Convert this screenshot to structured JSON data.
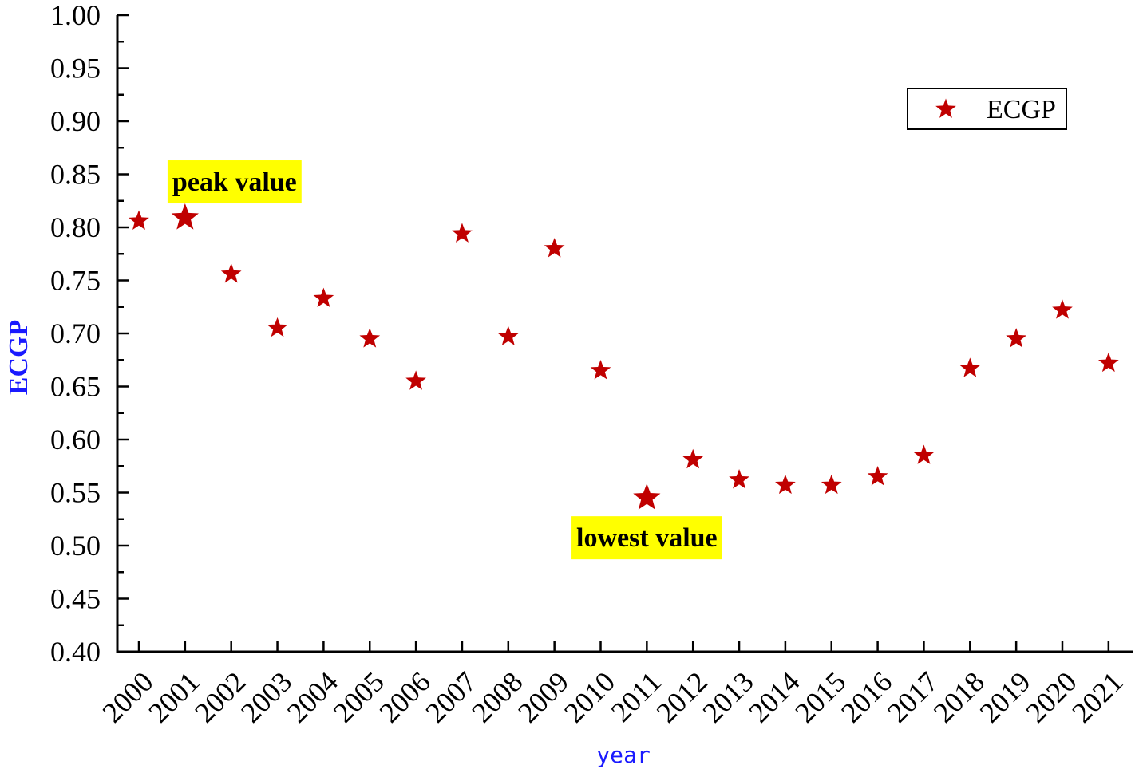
{
  "chart_data": {
    "type": "scatter",
    "title": "",
    "xlabel": "year",
    "ylabel": "ECGP",
    "ylim": [
      0.4,
      1.0
    ],
    "yticks": [
      "0.40",
      "0.45",
      "0.50",
      "0.55",
      "0.60",
      "0.65",
      "0.70",
      "0.75",
      "0.80",
      "0.85",
      "0.90",
      "0.95",
      "1.00"
    ],
    "categories": [
      "2000",
      "2001",
      "2002",
      "2003",
      "2004",
      "2005",
      "2006",
      "2007",
      "2008",
      "2009",
      "2010",
      "2011",
      "2012",
      "2013",
      "2014",
      "2015",
      "2016",
      "2017",
      "2018",
      "2019",
      "2020",
      "2021"
    ],
    "series": [
      {
        "name": "ECGP",
        "marker": "star",
        "color": "#c00000",
        "values": [
          0.806,
          0.809,
          0.756,
          0.705,
          0.733,
          0.695,
          0.655,
          0.794,
          0.697,
          0.78,
          0.665,
          0.545,
          0.581,
          0.562,
          0.557,
          0.557,
          0.565,
          0.585,
          0.667,
          0.695,
          0.722,
          0.672
        ]
      }
    ],
    "legend": {
      "position": "top-right",
      "entries": [
        "ECGP"
      ]
    },
    "grid": false,
    "annotations": [
      {
        "text": "peak value",
        "category": "2001",
        "value": 0.809,
        "highlight": "#ffff00"
      },
      {
        "text": "lowest value",
        "category": "2011",
        "value": 0.545,
        "highlight": "#ffff00"
      }
    ],
    "colors": {
      "ylabel": "#1a1aff",
      "xlabel": "#1a1aff",
      "marker": "#c00000",
      "highlight": "#ffff00"
    }
  }
}
